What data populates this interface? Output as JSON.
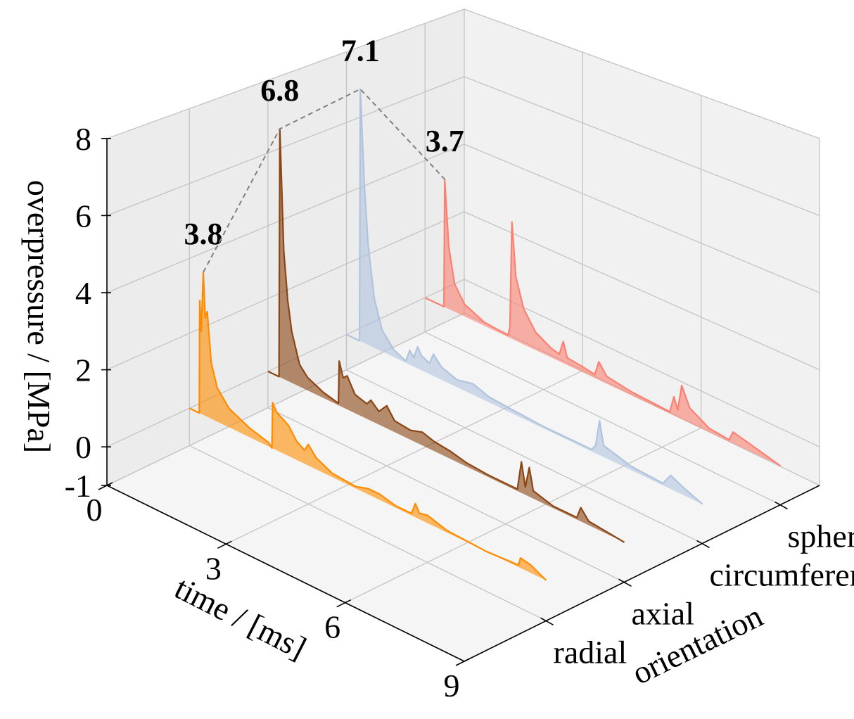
{
  "chart_data": {
    "type": "area",
    "projection": "3d",
    "xlabel": "time / [ms]",
    "ylabel": "orientation",
    "zlabel": "overpressure / [MPa]",
    "xlim": [
      0,
      9
    ],
    "ylim": [
      -1.05,
      3.5
    ],
    "zlim": [
      -1,
      8
    ],
    "xticks": [
      "0",
      "3",
      "6",
      "9"
    ],
    "xtick_values": [
      0,
      3,
      6,
      9
    ],
    "yticks": [
      "radial",
      "axial",
      "circumferential",
      "sphere"
    ],
    "zticks": [
      "-1",
      "0",
      "2",
      "4",
      "6",
      "8"
    ],
    "ztick_values": [
      -1,
      0,
      2,
      4,
      6,
      8
    ],
    "grid": true,
    "series": [
      {
        "category": "radial",
        "color": "#ff8c00",
        "peak_label": "3.8",
        "peak": [
          0.35,
          3.8
        ],
        "points": [
          [
            0,
            0
          ],
          [
            0.25,
            0
          ],
          [
            0.26,
            3.0
          ],
          [
            0.3,
            2.2
          ],
          [
            0.35,
            3.8
          ],
          [
            0.4,
            2.6
          ],
          [
            0.45,
            2.8
          ],
          [
            0.55,
            1.5
          ],
          [
            0.7,
            0.9
          ],
          [
            1.0,
            0.5
          ],
          [
            1.5,
            0.25
          ],
          [
            2.0,
            0.1
          ],
          [
            2.08,
            0
          ],
          [
            2.1,
            1.2
          ],
          [
            2.2,
            1.0
          ],
          [
            2.35,
            0.9
          ],
          [
            2.5,
            0.8
          ],
          [
            2.7,
            0.5
          ],
          [
            2.9,
            0.35
          ],
          [
            3.0,
            0.55
          ],
          [
            3.2,
            0.3
          ],
          [
            3.6,
            0.1
          ],
          [
            4.2,
            0.05
          ],
          [
            4.5,
            0.15
          ],
          [
            4.8,
            0.15
          ],
          [
            5.2,
            0.05
          ],
          [
            5.6,
            0.05
          ],
          [
            5.7,
            0.35
          ],
          [
            5.8,
            0.15
          ],
          [
            6.0,
            0.2
          ],
          [
            6.5,
            0.05
          ],
          [
            7.5,
            0
          ],
          [
            8.3,
            0.05
          ],
          [
            8.35,
            0.25
          ],
          [
            8.6,
            0.2
          ],
          [
            9,
            0
          ]
        ]
      },
      {
        "category": "axial",
        "color": "#8b4513",
        "peak_label": "6.8",
        "peak": [
          0.3,
          6.8
        ],
        "points": [
          [
            0,
            0
          ],
          [
            0.28,
            0
          ],
          [
            0.3,
            6.8
          ],
          [
            0.4,
            3.5
          ],
          [
            0.5,
            2.2
          ],
          [
            0.6,
            1.4
          ],
          [
            0.8,
            0.6
          ],
          [
            1.0,
            0.35
          ],
          [
            1.4,
            0.15
          ],
          [
            1.78,
            0.05
          ],
          [
            1.8,
            1.2
          ],
          [
            1.9,
            0.8
          ],
          [
            2.0,
            0.9
          ],
          [
            2.2,
            0.5
          ],
          [
            2.5,
            0.4
          ],
          [
            2.6,
            0.55
          ],
          [
            2.8,
            0.35
          ],
          [
            3.0,
            0.6
          ],
          [
            3.2,
            0.3
          ],
          [
            3.6,
            0.25
          ],
          [
            3.9,
            0.35
          ],
          [
            4.2,
            0.25
          ],
          [
            4.6,
            0.2
          ],
          [
            5.0,
            0.1
          ],
          [
            5.6,
            0.05
          ],
          [
            6.3,
            0.05
          ],
          [
            6.4,
            0.8
          ],
          [
            6.5,
            0.2
          ],
          [
            6.6,
            0.75
          ],
          [
            6.7,
            0.2
          ],
          [
            7.2,
            0.05
          ],
          [
            7.8,
            0.05
          ],
          [
            7.9,
            0.35
          ],
          [
            8.1,
            0.1
          ],
          [
            9,
            0
          ]
        ]
      },
      {
        "category": "circumferential",
        "color": "#b0c4de",
        "peak_label": "7.1",
        "peak": [
          0.35,
          7.1
        ],
        "points": [
          [
            0,
            0
          ],
          [
            0.33,
            0
          ],
          [
            0.35,
            7.1
          ],
          [
            0.45,
            4.5
          ],
          [
            0.55,
            2.8
          ],
          [
            0.7,
            1.4
          ],
          [
            0.9,
            0.6
          ],
          [
            1.2,
            0.2
          ],
          [
            1.5,
            0.05
          ],
          [
            1.6,
            0.4
          ],
          [
            1.7,
            0.25
          ],
          [
            1.8,
            0.6
          ],
          [
            1.9,
            0.4
          ],
          [
            2.1,
            0.3
          ],
          [
            2.2,
            0.6
          ],
          [
            2.4,
            0.35
          ],
          [
            2.8,
            0.2
          ],
          [
            3.2,
            0.3
          ],
          [
            3.6,
            0.15
          ],
          [
            4.2,
            0.1
          ],
          [
            5.0,
            0.05
          ],
          [
            6.2,
            0.05
          ],
          [
            6.3,
            0.2
          ],
          [
            6.4,
            0.9
          ],
          [
            6.5,
            0.3
          ],
          [
            7.2,
            0.1
          ],
          [
            8.0,
            0.05
          ],
          [
            8.2,
            0.35
          ],
          [
            8.5,
            0.2
          ],
          [
            9,
            0
          ]
        ]
      },
      {
        "category": "sphere",
        "color": "#fa8072",
        "peak_label": "3.7",
        "peak": [
          0.5,
          3.7
        ],
        "points": [
          [
            0,
            0
          ],
          [
            0.48,
            0
          ],
          [
            0.5,
            3.7
          ],
          [
            0.6,
            1.8
          ],
          [
            0.75,
            0.8
          ],
          [
            1.0,
            0.35
          ],
          [
            1.5,
            0.1
          ],
          [
            2.1,
            0.05
          ],
          [
            2.15,
            0.3
          ],
          [
            2.2,
            3.3
          ],
          [
            2.3,
            1.8
          ],
          [
            2.5,
            1.0
          ],
          [
            2.8,
            0.5
          ],
          [
            3.2,
            0.25
          ],
          [
            3.4,
            0.2
          ],
          [
            3.5,
            0.6
          ],
          [
            3.6,
            0.2
          ],
          [
            4.0,
            0.15
          ],
          [
            4.3,
            0.1
          ],
          [
            4.4,
            0.5
          ],
          [
            4.6,
            0.2
          ],
          [
            5.2,
            0.1
          ],
          [
            6.2,
            0.05
          ],
          [
            6.3,
            0.5
          ],
          [
            6.4,
            0.2
          ],
          [
            6.5,
            0.9
          ],
          [
            6.7,
            0.4
          ],
          [
            7.2,
            0.1
          ],
          [
            7.7,
            0.05
          ],
          [
            7.8,
            0.3
          ],
          [
            8.2,
            0.2
          ],
          [
            9,
            0
          ]
        ]
      }
    ]
  }
}
